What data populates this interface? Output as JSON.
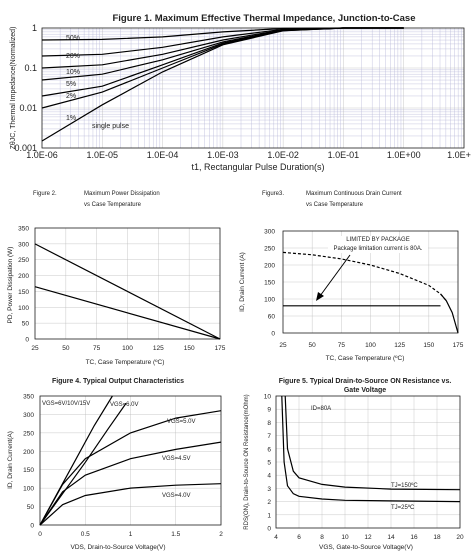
{
  "chart_data": [
    {
      "type": "line",
      "title": "Figure 1. Maximum Effective Thermal Impedance, Junction-to-Case",
      "xlabel": "t1, Rectangular Pulse Duration(s)",
      "ylabel": "ZθJC, Thermal Impedance(Normalized)",
      "x_scale": "log",
      "y_scale": "log",
      "xlim": [
        1e-06,
        10
      ],
      "ylim": [
        0.001,
        1
      ],
      "xticks": [
        "1.0E-06",
        "1.0E-05",
        "1.0E-04",
        "1.0E-03",
        "1.0E-02",
        "1.0E-01",
        "1.0E+00",
        "1.0E+01"
      ],
      "yticks": [
        "1",
        "0.1",
        "0.01",
        "0.001"
      ],
      "series": [
        {
          "name": "50%",
          "x": [
            1e-06,
            1e-05,
            0.0001,
            0.001,
            0.01,
            0.1,
            1
          ],
          "y": [
            0.5,
            0.52,
            0.6,
            0.8,
            0.97,
            1,
            1
          ]
        },
        {
          "name": "20%",
          "x": [
            1e-06,
            1e-05,
            0.0001,
            0.001,
            0.01,
            0.1,
            1
          ],
          "y": [
            0.2,
            0.22,
            0.33,
            0.6,
            0.93,
            1,
            1
          ]
        },
        {
          "name": "10%",
          "x": [
            1e-06,
            1e-05,
            0.0001,
            0.001,
            0.01,
            0.1,
            1
          ],
          "y": [
            0.1,
            0.12,
            0.22,
            0.5,
            0.9,
            1,
            1
          ]
        },
        {
          "name": "5%",
          "x": [
            1e-06,
            1e-05,
            0.0001,
            0.001,
            0.01,
            0.1,
            1
          ],
          "y": [
            0.05,
            0.07,
            0.16,
            0.45,
            0.88,
            1,
            1
          ]
        },
        {
          "name": "2%",
          "x": [
            1e-06,
            1e-05,
            0.0001,
            0.001,
            0.01,
            0.1,
            1
          ],
          "y": [
            0.02,
            0.035,
            0.12,
            0.42,
            0.87,
            1,
            1
          ]
        },
        {
          "name": "1%",
          "x": [
            1e-06,
            1e-05,
            0.0001,
            0.001,
            0.01,
            0.1,
            1
          ],
          "y": [
            0.01,
            0.025,
            0.1,
            0.4,
            0.86,
            1,
            1
          ]
        },
        {
          "name": "single pulse",
          "x": [
            1e-06,
            1e-05,
            0.0001,
            0.001,
            0.01,
            0.1,
            1
          ],
          "y": [
            0.0015,
            0.012,
            0.08,
            0.38,
            0.85,
            1,
            1
          ]
        }
      ],
      "labels": [
        "50%",
        "20%",
        "10%",
        "5%",
        "2%",
        "1%",
        "single pulse"
      ]
    },
    {
      "type": "line",
      "title": "Figure 2.     Maximum Power Dissipation vs Case Temperature",
      "xlabel": "TC, Case Temperature (ºC)",
      "ylabel": "PD, Power Dissipation (W)",
      "xlim": [
        25,
        175
      ],
      "ylim": [
        0,
        350
      ],
      "xticks": [
        "25",
        "50",
        "75",
        "100",
        "125",
        "150",
        "175"
      ],
      "yticks": [
        "0",
        "50",
        "100",
        "150",
        "200",
        "250",
        "300",
        "350"
      ],
      "series": [
        {
          "x": [
            25,
            175
          ],
          "y": [
            300,
            0
          ]
        },
        {
          "x": [
            25,
            175
          ],
          "y": [
            165,
            0
          ]
        }
      ]
    },
    {
      "type": "line",
      "title": "Figure3.     Maximum Continuous Drain Current vs Case Temperature",
      "xlabel": "TC, Case Temperature (ºC)",
      "ylabel": "ID, Drain Current (A)",
      "xlim": [
        25,
        175
      ],
      "ylim": [
        0,
        300
      ],
      "xticks": [
        "25",
        "50",
        "75",
        "100",
        "125",
        "150",
        "175"
      ],
      "yticks": [
        "0",
        "60",
        "100",
        "150",
        "200",
        "250",
        "300"
      ],
      "annotations": [
        "LIMITED BY PACKAGE",
        "Package limitation current is 80A."
      ],
      "series": [
        {
          "x": [
            25,
            50,
            75,
            100,
            125,
            150,
            160,
            165,
            170,
            175
          ],
          "y": [
            237,
            230,
            218,
            200,
            175,
            140,
            115,
            95,
            60,
            0
          ]
        },
        {
          "x": [
            25,
            160
          ],
          "y": [
            80,
            80
          ]
        }
      ]
    },
    {
      "type": "line",
      "title": "Figure 4. Typical Output Characteristics",
      "xlabel": "VDS, Drain-to-Source Voltage(V)",
      "ylabel": "ID, Drain Current(A)",
      "xlim": [
        0,
        2
      ],
      "ylim": [
        0,
        350
      ],
      "xticks": [
        "0",
        "0.5",
        "1",
        "1.5",
        "2"
      ],
      "yticks": [
        "0",
        "50",
        "100",
        "150",
        "200",
        "250",
        "300",
        "350"
      ],
      "series": [
        {
          "name": "VGS=6V/10V/15V",
          "x": [
            0,
            0.2,
            0.4,
            0.6,
            0.8
          ],
          "y": [
            0,
            90,
            180,
            270,
            350
          ]
        },
        {
          "name": "VGS=6.0V",
          "x": [
            0,
            0.25,
            0.5,
            0.75,
            0.95
          ],
          "y": [
            0,
            85,
            170,
            260,
            330
          ]
        },
        {
          "name": "VGS=5.0V",
          "x": [
            0,
            0.25,
            0.5,
            1,
            1.5,
            2
          ],
          "y": [
            0,
            110,
            180,
            250,
            290,
            310
          ]
        },
        {
          "name": "VGS=4.5V",
          "x": [
            0,
            0.25,
            0.5,
            1,
            1.5,
            2
          ],
          "y": [
            0,
            90,
            135,
            180,
            205,
            225
          ]
        },
        {
          "name": "VGS=4.0V",
          "x": [
            0,
            0.25,
            0.5,
            1,
            1.5,
            2
          ],
          "y": [
            0,
            55,
            80,
            100,
            108,
            112
          ]
        }
      ],
      "labels": [
        "VGS=6V/10V/15V",
        "VGS=6.0V",
        "VGS=5.0V",
        "VGS=4.5V",
        "VGS=4.0V"
      ]
    },
    {
      "type": "line",
      "title": "Figure 5. Typical Drain-to-Source ON Resistance vs. Gate Voltage",
      "xlabel": "VGS, Gate-to-Source Voltage(V)",
      "ylabel": "RDS(ON), Drain-to-Source ON Resistance(mOhm)",
      "xlim": [
        4,
        20
      ],
      "ylim": [
        0,
        10
      ],
      "xticks": [
        "4",
        "6",
        "8",
        "10",
        "12",
        "14",
        "16",
        "18",
        "20"
      ],
      "yticks": [
        "0",
        "1",
        "2",
        "3",
        "4",
        "5",
        "6",
        "7",
        "8",
        "9",
        "10"
      ],
      "annotations": [
        "ID=80A"
      ],
      "series": [
        {
          "name": "TJ=150ºC",
          "x": [
            4.8,
            5,
            5.5,
            6,
            8,
            10,
            14,
            20
          ],
          "y": [
            10,
            6,
            4.3,
            3.8,
            3.3,
            3.1,
            2.95,
            2.9
          ]
        },
        {
          "name": "TJ=25ºC",
          "x": [
            4.5,
            4.7,
            5,
            5.5,
            6,
            8,
            10,
            14,
            20
          ],
          "y": [
            10,
            5,
            3.2,
            2.6,
            2.4,
            2.2,
            2.1,
            2.05,
            2.0
          ]
        }
      ],
      "labels": [
        "TJ=150ºC",
        "TJ=25ºC"
      ]
    }
  ]
}
